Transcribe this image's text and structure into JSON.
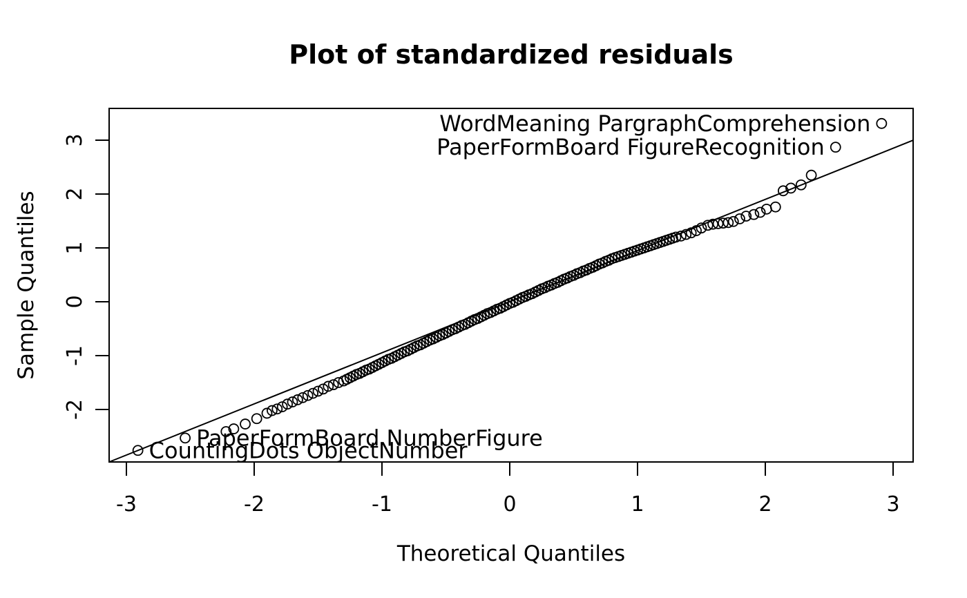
{
  "figure": {
    "background_color": "#ffffff",
    "foreground_color": "#000000"
  },
  "chart_data": {
    "type": "scatter",
    "subtype": "qqnorm",
    "title": "Plot of standardized residuals",
    "xlabel": "Theoretical Quantiles",
    "ylabel": "Sample Quantiles",
    "xlim": [
      -3.14,
      3.16
    ],
    "ylim": [
      -2.97,
      3.59
    ],
    "x_ticks": [
      -3,
      -2,
      -1,
      0,
      1,
      2,
      3
    ],
    "y_ticks": [
      -2,
      -1,
      0,
      1,
      2,
      3
    ],
    "grid": false,
    "legend": "none",
    "marker": {
      "shape": "open-circle",
      "radius_px": 7,
      "color": "#000000"
    },
    "reference_line": {
      "slope": 0.95,
      "intercept": 0.0,
      "color": "#000000"
    },
    "labeled_points": [
      {
        "label": "WordMeaning PargraphComprehension",
        "x": 2.91,
        "y": 3.31,
        "label_side": "left"
      },
      {
        "label": "PaperFormBoard FigureRecognition",
        "x": 2.55,
        "y": 2.87,
        "label_side": "left"
      },
      {
        "label": "PaperFormBoard NumberFigure",
        "x": -2.54,
        "y": -2.53,
        "label_side": "right"
      },
      {
        "label": "CountingDots ObjectNumber",
        "x": -2.91,
        "y": -2.76,
        "label_side": "right"
      }
    ],
    "points": [
      [
        -2.22,
        -2.41
      ],
      [
        -2.16,
        -2.36
      ],
      [
        -2.07,
        -2.27
      ],
      [
        -1.98,
        -2.17
      ],
      [
        -1.9,
        -2.07
      ],
      [
        -1.86,
        -2.02
      ],
      [
        -1.82,
        -1.99
      ],
      [
        -1.78,
        -1.95
      ],
      [
        -1.74,
        -1.9
      ],
      [
        -1.7,
        -1.86
      ],
      [
        -1.66,
        -1.82
      ],
      [
        -1.62,
        -1.78
      ],
      [
        -1.58,
        -1.74
      ],
      [
        -1.54,
        -1.7
      ],
      [
        -1.5,
        -1.66
      ],
      [
        -1.46,
        -1.62
      ],
      [
        -1.42,
        -1.57
      ],
      [
        -1.38,
        -1.54
      ],
      [
        -1.34,
        -1.5
      ],
      [
        -1.3,
        -1.47
      ],
      [
        -1.275,
        -1.44
      ],
      [
        -1.25,
        -1.41
      ],
      [
        -1.225,
        -1.38
      ],
      [
        -1.2,
        -1.35
      ],
      [
        -1.175,
        -1.33
      ],
      [
        -1.15,
        -1.3
      ],
      [
        -1.125,
        -1.27
      ],
      [
        -1.1,
        -1.25
      ],
      [
        -1.075,
        -1.22
      ],
      [
        -1.05,
        -1.19
      ],
      [
        -1.025,
        -1.16
      ],
      [
        -1.0,
        -1.13
      ],
      [
        -0.975,
        -1.1
      ],
      [
        -0.95,
        -1.07
      ],
      [
        -0.925,
        -1.05
      ],
      [
        -0.9,
        -1.02
      ],
      [
        -0.875,
        -0.99
      ],
      [
        -0.85,
        -0.96
      ],
      [
        -0.825,
        -0.93
      ],
      [
        -0.8,
        -0.91
      ],
      [
        -0.775,
        -0.88
      ],
      [
        -0.75,
        -0.85
      ],
      [
        -0.725,
        -0.82
      ],
      [
        -0.7,
        -0.8
      ],
      [
        -0.675,
        -0.77
      ],
      [
        -0.65,
        -0.74
      ],
      [
        -0.625,
        -0.71
      ],
      [
        -0.6,
        -0.69
      ],
      [
        -0.575,
        -0.66
      ],
      [
        -0.55,
        -0.63
      ],
      [
        -0.525,
        -0.61
      ],
      [
        -0.5,
        -0.58
      ],
      [
        -0.475,
        -0.55
      ],
      [
        -0.45,
        -0.52
      ],
      [
        -0.425,
        -0.5
      ],
      [
        -0.4,
        -0.47
      ],
      [
        -0.375,
        -0.44
      ],
      [
        -0.35,
        -0.42
      ],
      [
        -0.325,
        -0.39
      ],
      [
        -0.3,
        -0.36
      ],
      [
        -0.275,
        -0.33
      ],
      [
        -0.25,
        -0.31
      ],
      [
        -0.225,
        -0.28
      ],
      [
        -0.2,
        -0.25
      ],
      [
        -0.175,
        -0.22
      ],
      [
        -0.15,
        -0.2
      ],
      [
        -0.125,
        -0.17
      ],
      [
        -0.1,
        -0.14
      ],
      [
        -0.075,
        -0.12
      ],
      [
        -0.05,
        -0.09
      ],
      [
        -0.025,
        -0.06
      ],
      [
        0.0,
        -0.03
      ],
      [
        0.025,
        -0.01
      ],
      [
        0.05,
        0.02
      ],
      [
        0.075,
        0.05
      ],
      [
        0.1,
        0.08
      ],
      [
        0.125,
        0.1
      ],
      [
        0.15,
        0.13
      ],
      [
        0.175,
        0.15
      ],
      [
        0.2,
        0.18
      ],
      [
        0.225,
        0.21
      ],
      [
        0.25,
        0.24
      ],
      [
        0.275,
        0.26
      ],
      [
        0.3,
        0.29
      ],
      [
        0.325,
        0.31
      ],
      [
        0.35,
        0.34
      ],
      [
        0.375,
        0.36
      ],
      [
        0.4,
        0.39
      ],
      [
        0.425,
        0.42
      ],
      [
        0.45,
        0.44
      ],
      [
        0.475,
        0.47
      ],
      [
        0.5,
        0.49
      ],
      [
        0.525,
        0.52
      ],
      [
        0.55,
        0.54
      ],
      [
        0.575,
        0.57
      ],
      [
        0.6,
        0.59
      ],
      [
        0.625,
        0.62
      ],
      [
        0.65,
        0.64
      ],
      [
        0.675,
        0.67
      ],
      [
        0.7,
        0.7
      ],
      [
        0.725,
        0.72
      ],
      [
        0.75,
        0.75
      ],
      [
        0.775,
        0.77
      ],
      [
        0.8,
        0.8
      ],
      [
        0.825,
        0.82
      ],
      [
        0.85,
        0.84
      ],
      [
        0.875,
        0.86
      ],
      [
        0.9,
        0.88
      ],
      [
        0.925,
        0.9
      ],
      [
        0.95,
        0.92
      ],
      [
        0.975,
        0.94
      ],
      [
        1.0,
        0.96
      ],
      [
        1.025,
        0.98
      ],
      [
        1.05,
        1.0
      ],
      [
        1.075,
        1.02
      ],
      [
        1.1,
        1.04
      ],
      [
        1.125,
        1.06
      ],
      [
        1.15,
        1.08
      ],
      [
        1.175,
        1.1
      ],
      [
        1.2,
        1.12
      ],
      [
        1.225,
        1.14
      ],
      [
        1.25,
        1.16
      ],
      [
        1.275,
        1.18
      ],
      [
        1.3,
        1.2
      ],
      [
        1.34,
        1.22
      ],
      [
        1.38,
        1.25
      ],
      [
        1.42,
        1.28
      ],
      [
        1.46,
        1.32
      ],
      [
        1.5,
        1.37
      ],
      [
        1.55,
        1.42
      ],
      [
        1.59,
        1.44
      ],
      [
        1.63,
        1.45
      ],
      [
        1.67,
        1.46
      ],
      [
        1.71,
        1.47
      ],
      [
        1.75,
        1.49
      ],
      [
        1.8,
        1.54
      ],
      [
        1.85,
        1.59
      ],
      [
        1.91,
        1.62
      ],
      [
        1.96,
        1.66
      ],
      [
        2.01,
        1.72
      ],
      [
        2.08,
        1.76
      ],
      [
        2.14,
        2.06
      ],
      [
        2.2,
        2.11
      ],
      [
        2.28,
        2.17
      ],
      [
        2.36,
        2.35
      ]
    ]
  }
}
